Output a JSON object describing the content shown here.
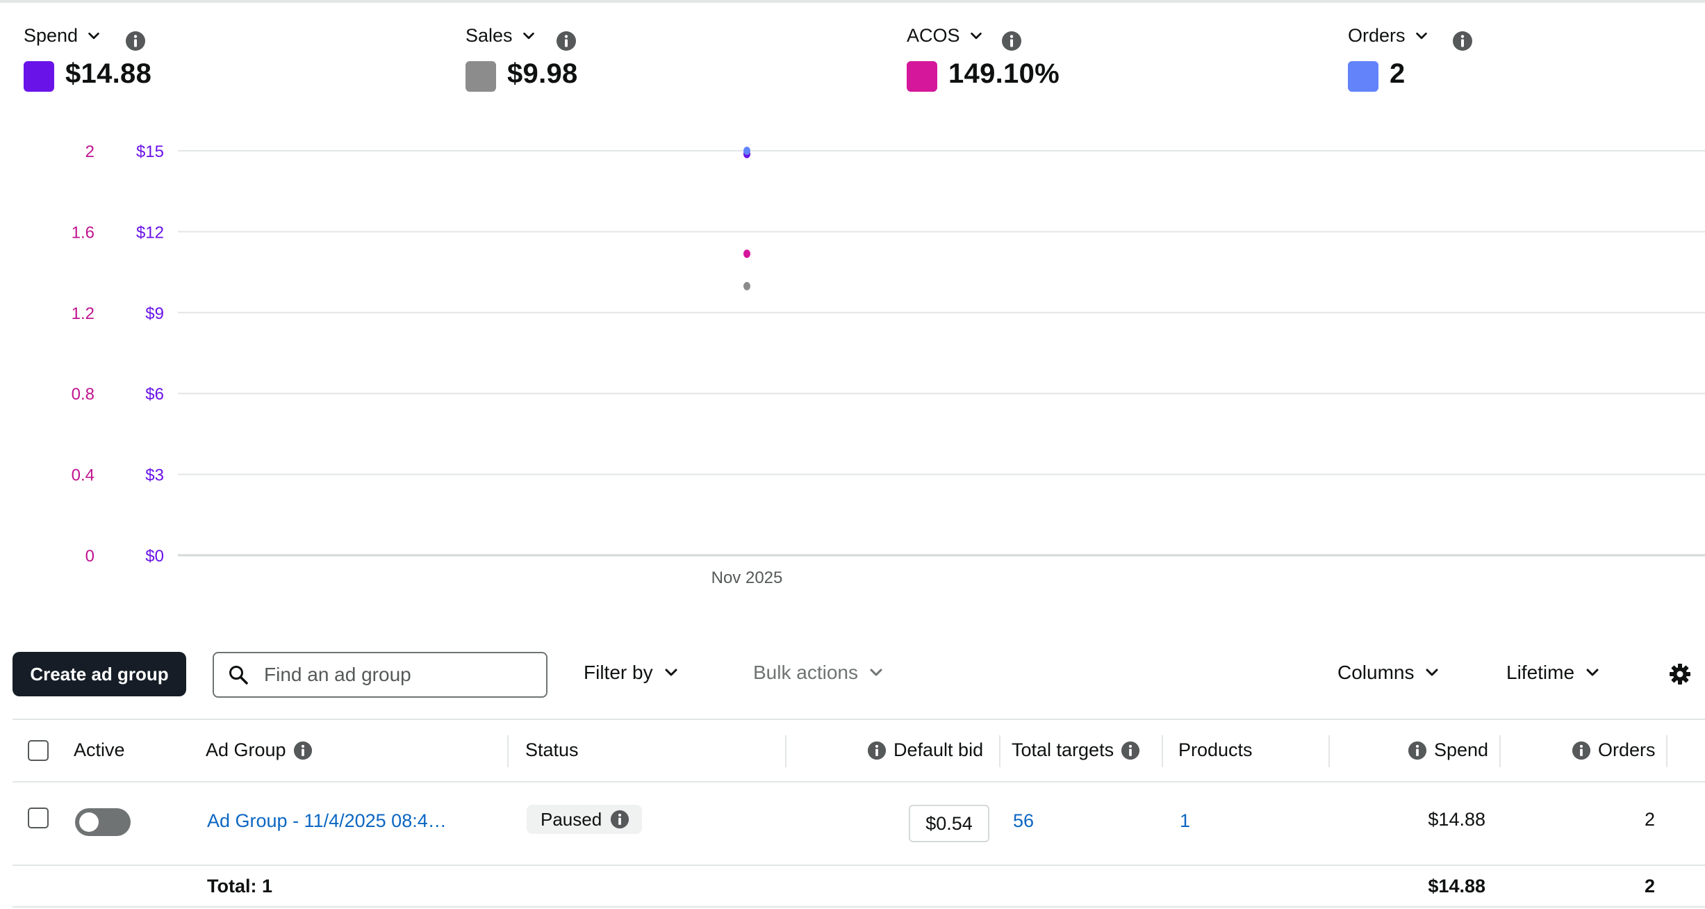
{
  "metrics": [
    {
      "label": "Spend",
      "value": "$14.88",
      "color": "#6a13e8"
    },
    {
      "label": "Sales",
      "value": "$9.98",
      "color": "#8c8c8c"
    },
    {
      "label": "ACOS",
      "value": "149.10%",
      "color": "#d4179b"
    },
    {
      "label": "Orders",
      "value": "2",
      "color": "#6283fa"
    }
  ],
  "chart_data": {
    "type": "line",
    "x": [
      "Nov 2025"
    ],
    "series": [
      {
        "name": "Spend",
        "values": [
          14.88
        ],
        "color": "#6a13e8",
        "axis": "right"
      },
      {
        "name": "Sales",
        "values": [
          9.98
        ],
        "color": "#8c8c8c",
        "axis": "right"
      },
      {
        "name": "ACOS",
        "values": [
          1.491
        ],
        "color": "#d4179b"
      },
      {
        "name": "Orders",
        "values": [
          2
        ],
        "color": "#6283fa",
        "axis": "left"
      }
    ],
    "left_axis": {
      "ticks": [
        "0",
        "0.4",
        "0.8",
        "1.2",
        "1.6",
        "2"
      ],
      "range": [
        0,
        2
      ],
      "color": "#c0148f"
    },
    "right_axis": {
      "ticks": [
        "$0",
        "$3",
        "$6",
        "$9",
        "$12",
        "$15"
      ],
      "range": [
        0,
        15
      ],
      "color": "#6a13e8"
    },
    "grid": true
  },
  "toolbar": {
    "create_label": "Create ad group",
    "search_placeholder": "Find an ad group",
    "filter_label": "Filter by",
    "bulk_label": "Bulk actions",
    "columns_label": "Columns",
    "range_label": "Lifetime"
  },
  "table": {
    "headers": {
      "active": "Active",
      "ad_group": "Ad Group",
      "status": "Status",
      "default_bid": "Default bid",
      "total_targets": "Total targets",
      "products": "Products",
      "spend": "Spend",
      "orders": "Orders"
    },
    "rows": [
      {
        "name": "Ad Group - 11/4/2025 08:4…",
        "status": "Paused",
        "default_bid": "$0.54",
        "total_targets": "56",
        "products": "1",
        "spend": "$14.88",
        "orders": "2"
      }
    ],
    "total": {
      "label": "Total: 1",
      "spend": "$14.88",
      "orders": "2"
    }
  }
}
